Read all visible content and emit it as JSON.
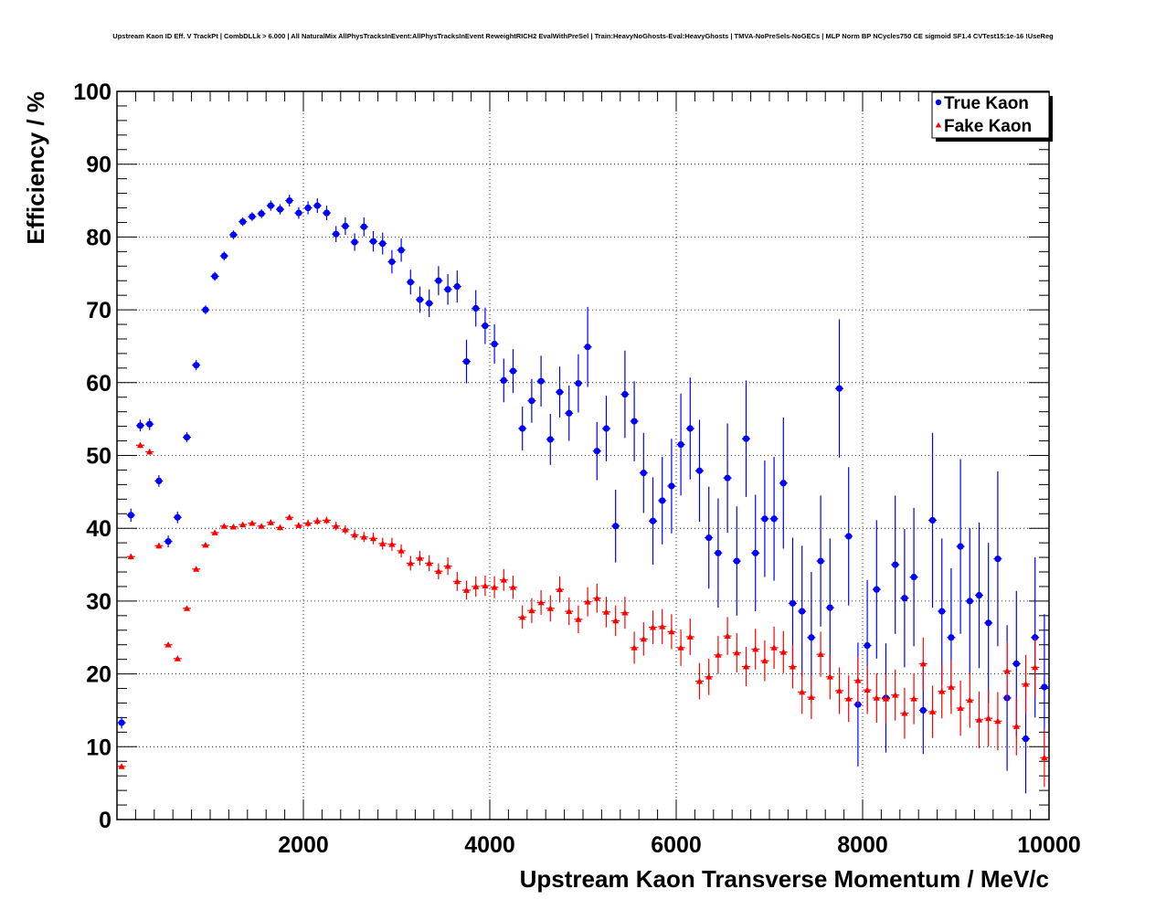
{
  "chart_data": {
    "type": "scatter",
    "title": "Upstream Kaon ID Eff. V TrackPt | CombDLLk > 6.000 | All NaturalMix AllPhysTracksInEvent:AllPhysTracksInEvent ReweightRICH2 EvalWithPreSel | Train:HeavyNoGhosts-Eval:HeavyGhosts | TMVA-NoPreSels-NoGECs | MLP Norm BP NCycles750 CE sigmoid SF1.4 CVTest15:1e-16 !UseReg",
    "xlabel": "Upstream Kaon Transverse Momentum / MeV/c",
    "ylabel": "Efficiency / %",
    "xlim": [
      0,
      10000
    ],
    "ylim": [
      0,
      100
    ],
    "x_ticks": [
      2000,
      4000,
      6000,
      8000,
      10000
    ],
    "y_ticks": [
      0,
      10,
      20,
      30,
      40,
      50,
      60,
      70,
      80,
      90,
      100
    ],
    "grid": true,
    "legend_position": "top-right",
    "series": [
      {
        "name": "True Kaon",
        "color": "#0000ff",
        "marker": "circle",
        "x": [
          50,
          150,
          250,
          350,
          450,
          550,
          650,
          750,
          850,
          950,
          1050,
          1150,
          1250,
          1350,
          1450,
          1550,
          1650,
          1750,
          1850,
          1950,
          2050,
          2150,
          2250,
          2350,
          2450,
          2550,
          2650,
          2750,
          2850,
          2950,
          3050,
          3150,
          3250,
          3350,
          3450,
          3550,
          3650,
          3750,
          3850,
          3950,
          4050,
          4150,
          4250,
          4350,
          4450,
          4550,
          4650,
          4750,
          4850,
          4950,
          5050,
          5150,
          5250,
          5350,
          5450,
          5550,
          5650,
          5750,
          5850,
          5950,
          6050,
          6150,
          6250,
          6350,
          6450,
          6550,
          6650,
          6750,
          6850,
          6950,
          7050,
          7150,
          7250,
          7350,
          7450,
          7550,
          7650,
          7750,
          7850,
          7950,
          8050,
          8150,
          8250,
          8350,
          8450,
          8550,
          8650,
          8750,
          8850,
          8950,
          9050,
          9150,
          9250,
          9350,
          9450,
          9550,
          9650,
          9750,
          9850,
          9950
        ],
        "y": [
          13.3,
          41.8,
          54.1,
          54.3,
          46.5,
          38.2,
          41.5,
          52.5,
          62.4,
          70.0,
          74.6,
          77.4,
          80.3,
          82.1,
          82.8,
          83.2,
          84.3,
          83.8,
          85.0,
          83.3,
          84.0,
          84.3,
          83.3,
          80.4,
          81.5,
          79.3,
          81.4,
          79.4,
          79.1,
          76.6,
          78.2,
          73.8,
          71.4,
          70.9,
          74.0,
          72.8,
          73.2,
          62.9,
          70.2,
          67.8,
          65.3,
          60.3,
          61.6,
          53.7,
          57.5,
          60.2,
          52.2,
          58.7,
          55.8,
          59.9,
          64.9,
          50.6,
          53.7,
          40.3,
          58.4,
          54.7,
          47.6,
          41.0,
          43.8,
          45.8,
          51.5,
          53.7,
          47.9,
          38.7,
          36.6,
          46.9,
          35.5,
          52.3,
          36.6,
          41.3,
          41.3,
          46.2,
          29.7,
          28.6,
          25.0,
          35.5,
          29.1,
          59.2,
          38.9,
          15.8,
          23.9,
          31.6,
          16.7,
          35.0,
          30.4,
          33.3,
          15.0,
          41.1,
          28.6,
          25.0,
          37.5,
          30.0,
          30.8,
          27.0,
          35.8,
          16.7,
          21.4,
          11.1,
          25.0,
          18.2
        ],
        "yerr": [
          0.8,
          0.9,
          0.8,
          0.8,
          0.8,
          0.8,
          0.8,
          0.7,
          0.7,
          0.6,
          0.6,
          0.6,
          0.6,
          0.6,
          0.6,
          0.6,
          0.7,
          0.7,
          0.8,
          0.8,
          0.9,
          1.0,
          1.0,
          1.1,
          1.2,
          1.2,
          1.3,
          1.4,
          1.5,
          1.6,
          1.6,
          1.7,
          1.8,
          1.9,
          2.0,
          2.1,
          2.2,
          3.0,
          2.5,
          2.5,
          2.7,
          3.0,
          3.0,
          3.0,
          3.0,
          3.5,
          3.5,
          3.5,
          3.8,
          4.0,
          5.5,
          4.0,
          4.5,
          5.0,
          6.0,
          5.5,
          5.5,
          6.0,
          6.0,
          6.5,
          7.0,
          7.0,
          7.0,
          7.0,
          7.5,
          7.5,
          7.5,
          8.0,
          8.0,
          8.0,
          8.5,
          9.0,
          9.0,
          9.0,
          9.0,
          9.0,
          9.5,
          9.5,
          9.5,
          8.5,
          9.0,
          9.5,
          7.5,
          9.5,
          9.5,
          9.5,
          6.0,
          12.0,
          10.0,
          9.5,
          12.0,
          10.0,
          10.0,
          11.0,
          12.0,
          10.0,
          10.0,
          7.5,
          11.0,
          10.0
        ]
      },
      {
        "name": "Fake Kaon",
        "color": "#ff0000",
        "marker": "triangle",
        "x": [
          50,
          150,
          250,
          350,
          450,
          550,
          650,
          750,
          850,
          950,
          1050,
          1150,
          1250,
          1350,
          1450,
          1550,
          1650,
          1750,
          1850,
          1950,
          2050,
          2150,
          2250,
          2350,
          2450,
          2550,
          2650,
          2750,
          2850,
          2950,
          3050,
          3150,
          3250,
          3350,
          3450,
          3550,
          3650,
          3750,
          3850,
          3950,
          4050,
          4150,
          4250,
          4350,
          4450,
          4550,
          4650,
          4750,
          4850,
          4950,
          5050,
          5150,
          5250,
          5350,
          5450,
          5550,
          5650,
          5750,
          5850,
          5950,
          6050,
          6150,
          6250,
          6350,
          6450,
          6550,
          6650,
          6750,
          6850,
          6950,
          7050,
          7150,
          7250,
          7350,
          7450,
          7550,
          7650,
          7750,
          7850,
          7950,
          8050,
          8150,
          8250,
          8350,
          8450,
          8550,
          8650,
          8750,
          8850,
          8950,
          9050,
          9150,
          9250,
          9350,
          9450,
          9550,
          9650,
          9750,
          9850,
          9950
        ],
        "y": [
          7.3,
          36.1,
          51.4,
          50.5,
          37.6,
          24.0,
          22.1,
          29.0,
          34.4,
          37.7,
          39.4,
          40.3,
          40.2,
          40.5,
          40.7,
          40.3,
          40.8,
          40.1,
          41.5,
          40.4,
          40.7,
          41.0,
          41.1,
          40.3,
          39.8,
          39.1,
          38.8,
          38.6,
          37.9,
          37.8,
          36.9,
          35.2,
          35.9,
          35.2,
          34.1,
          34.8,
          32.7,
          31.5,
          32.0,
          32.1,
          31.9,
          32.9,
          31.9,
          27.8,
          28.7,
          29.8,
          29.0,
          31.6,
          28.6,
          27.5,
          29.9,
          30.4,
          28.5,
          27.3,
          28.4,
          23.6,
          24.8,
          26.4,
          26.5,
          25.8,
          23.6,
          25.1,
          19.0,
          19.6,
          22.6,
          25.2,
          22.9,
          21.0,
          23.4,
          21.8,
          23.6,
          23.0,
          21.0,
          17.5,
          16.8,
          22.7,
          19.6,
          17.7,
          16.6,
          19.1,
          17.8,
          16.7,
          16.6,
          17.1,
          14.6,
          16.6,
          21.4,
          14.8,
          17.6,
          18.2,
          15.3,
          16.4,
          13.7,
          13.9,
          13.5,
          20.4,
          12.8,
          18.6,
          20.9,
          8.5
        ],
        "yerr": [
          0.3,
          0.4,
          0.4,
          0.4,
          0.4,
          0.3,
          0.3,
          0.3,
          0.3,
          0.3,
          0.3,
          0.3,
          0.3,
          0.3,
          0.3,
          0.3,
          0.4,
          0.4,
          0.4,
          0.4,
          0.5,
          0.5,
          0.5,
          0.6,
          0.6,
          0.7,
          0.7,
          0.8,
          0.8,
          0.9,
          0.9,
          1.0,
          1.0,
          1.1,
          1.1,
          1.2,
          1.3,
          1.3,
          1.4,
          1.4,
          1.5,
          1.5,
          1.6,
          1.6,
          1.7,
          1.7,
          1.8,
          1.8,
          1.9,
          1.9,
          2.0,
          2.0,
          2.1,
          2.1,
          2.2,
          2.2,
          2.3,
          2.3,
          2.4,
          2.4,
          2.5,
          2.5,
          2.5,
          2.5,
          2.6,
          2.6,
          2.7,
          2.7,
          2.8,
          2.8,
          2.9,
          2.9,
          3.0,
          3.0,
          3.0,
          3.1,
          3.1,
          3.2,
          3.2,
          3.3,
          3.3,
          3.4,
          3.4,
          3.5,
          3.5,
          3.5,
          3.6,
          3.6,
          3.7,
          3.7,
          3.8,
          3.8,
          3.9,
          3.9,
          4.0,
          4.0,
          4.0,
          4.0,
          4.0,
          4.0
        ]
      }
    ]
  }
}
